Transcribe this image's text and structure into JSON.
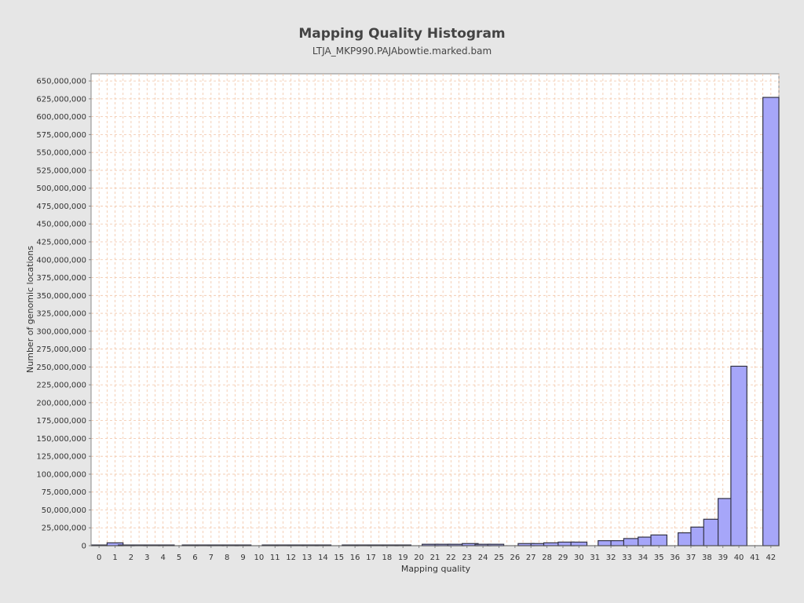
{
  "chart_data": {
    "type": "bar",
    "title": "Mapping Quality Histogram",
    "subtitle": "LTJA_MKP990.PAJAbowtie.marked.bam",
    "xlabel": "Mapping quality",
    "ylabel": "Number of genomic locations",
    "ylim": [
      0,
      660000000
    ],
    "xlim": [
      -0.5,
      42.5
    ],
    "x_ticks": [
      0,
      1,
      2,
      3,
      4,
      5,
      6,
      7,
      8,
      9,
      10,
      11,
      12,
      13,
      14,
      15,
      16,
      17,
      18,
      19,
      20,
      21,
      22,
      23,
      24,
      25,
      26,
      27,
      28,
      29,
      30,
      31,
      32,
      33,
      34,
      35,
      36,
      37,
      38,
      39,
      40,
      41,
      42
    ],
    "y_ticks": [
      0,
      25000000,
      50000000,
      75000000,
      100000000,
      125000000,
      150000000,
      175000000,
      200000000,
      225000000,
      250000000,
      275000000,
      300000000,
      325000000,
      350000000,
      375000000,
      400000000,
      425000000,
      450000000,
      475000000,
      500000000,
      525000000,
      550000000,
      575000000,
      600000000,
      625000000,
      650000000
    ],
    "grid": true,
    "bar_width": 1,
    "x": [
      0.0,
      1.0,
      1.7,
      2.5,
      3.3,
      4.2,
      5.7,
      6.5,
      7.3,
      8.2,
      9.0,
      10.7,
      11.5,
      12.3,
      13.2,
      14.0,
      15.7,
      16.5,
      17.3,
      18.2,
      19.0,
      20.7,
      21.5,
      22.3,
      23.2,
      24.0,
      24.8,
      26.7,
      27.5,
      28.3,
      29.2,
      30.0,
      31.7,
      32.5,
      33.3,
      34.2,
      35.0,
      36.7,
      37.5,
      38.3,
      39.2,
      40.0,
      42.0
    ],
    "values": [
      1000000,
      4000000,
      1000000,
      1000000,
      1000000,
      1000000,
      1000000,
      1000000,
      1000000,
      1000000,
      1000000,
      1000000,
      1000000,
      1000000,
      1000000,
      1000000,
      1000000,
      1000000,
      1000000,
      1000000,
      1000000,
      2000000,
      2000000,
      2000000,
      3000000,
      2000000,
      2000000,
      3000000,
      3000000,
      4000000,
      5000000,
      5000000,
      7000000,
      7000000,
      10000000,
      12000000,
      15000000,
      18000000,
      26000000,
      37000000,
      66000000,
      251000000,
      627000000
    ],
    "colors": {
      "background": "#e6e6e6",
      "plot_background": "#ffffff",
      "bar_fill": "#a6a6f9",
      "bar_stroke": "#333344",
      "grid": "#f2c4a6",
      "axis": "#888888",
      "text": "#333333",
      "title": "#444444"
    }
  }
}
